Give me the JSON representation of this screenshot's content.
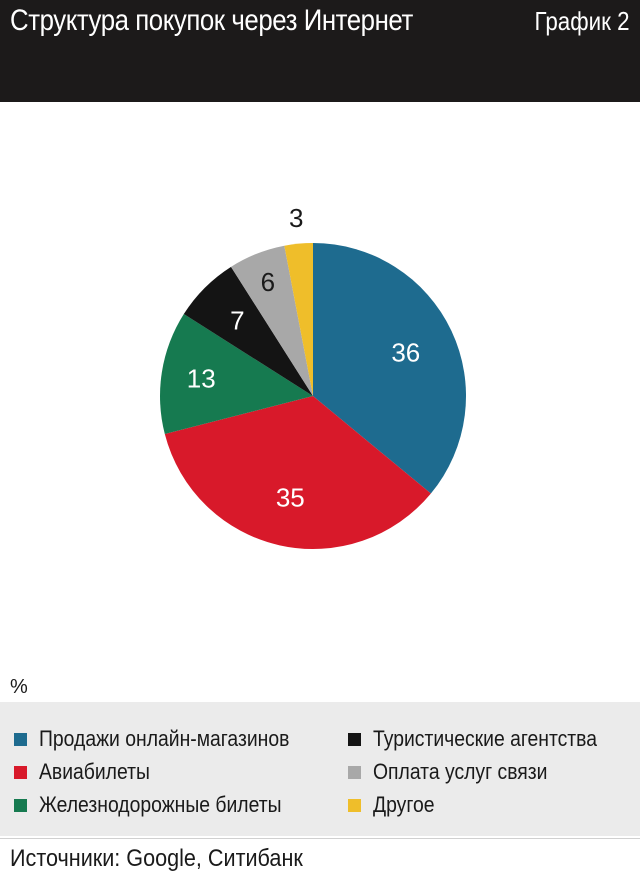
{
  "header": {
    "title": "Структура покупок через Интернет",
    "chart_number": "График 2"
  },
  "unit": "%",
  "source": "Источники: Google, Ситибанк",
  "chart_data": {
    "type": "pie",
    "title": "Структура покупок через Интернет",
    "unit": "%",
    "slices": [
      {
        "label": "Продажи онлайн-магазинов",
        "value": 36,
        "color": "#1e6b8f"
      },
      {
        "label": "Авиабилеты",
        "value": 35,
        "color": "#d8192a"
      },
      {
        "label": "Железнодорожные билеты",
        "value": 13,
        "color": "#167a50"
      },
      {
        "label": "Туристические агентства",
        "value": 7,
        "color": "#141414"
      },
      {
        "label": "Оплата услуг связи",
        "value": 6,
        "color": "#a8a8a8"
      },
      {
        "label": "Другое",
        "value": 3,
        "color": "#efbe2a"
      }
    ],
    "start_angle": "12 o'clock",
    "direction": "clockwise",
    "legend_position": "bottom"
  },
  "legend": {
    "items": [
      {
        "label": "Продажи онлайн-магазинов",
        "color": "#1e6b8f"
      },
      {
        "label": "Авиабилеты",
        "color": "#d8192a"
      },
      {
        "label": "Железнодорожные билеты",
        "color": "#167a50"
      },
      {
        "label": "Туристические агентства",
        "color": "#141414"
      },
      {
        "label": "Оплата услуг связи",
        "color": "#a8a8a8"
      },
      {
        "label": "Другое",
        "color": "#efbe2a"
      }
    ]
  }
}
